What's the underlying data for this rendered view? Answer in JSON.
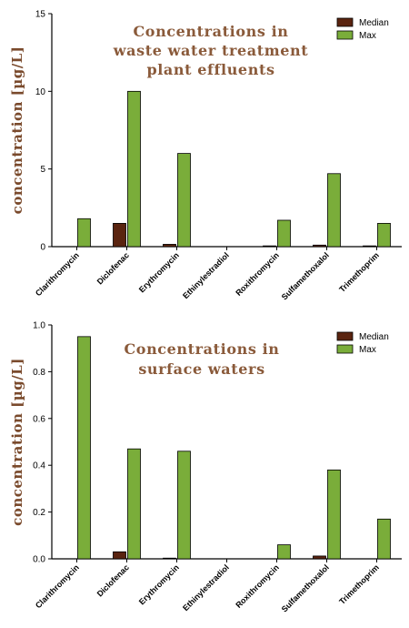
{
  "chart_data": [
    {
      "type": "bar",
      "title_lines": [
        "Concentrations in",
        "waste water treatment",
        "plant effluents"
      ],
      "ylabel": "concentration [µg/L]",
      "xlabel": "",
      "ylim": [
        0,
        15
      ],
      "yticks": [
        "0",
        "5",
        "10",
        "15"
      ],
      "ytick_values": [
        0,
        5,
        10,
        15
      ],
      "categories": [
        "Clarithromycin",
        "Diclofenac",
        "Erythromycin",
        "Ethinylestradiol",
        "Roxithromycin",
        "Sulfamethoxalol",
        "Trimethoprim"
      ],
      "series": [
        {
          "name": "Median",
          "color": "#5a2410",
          "values": [
            0,
            1.5,
            0.15,
            0,
            0.05,
            0.1,
            0.05
          ]
        },
        {
          "name": "Max",
          "color": "#7aad3a",
          "values": [
            1.8,
            10.0,
            6.0,
            0,
            1.7,
            4.7,
            1.5
          ]
        }
      ],
      "legend": "top-right",
      "grid": false
    },
    {
      "type": "bar",
      "title_lines": [
        "Concentrations in",
        "surface waters"
      ],
      "ylabel": "concentration [µg/L]",
      "xlabel": "",
      "ylim": [
        0,
        1.0
      ],
      "yticks": [
        "0.0",
        "0.2",
        "0.4",
        "0.6",
        "0.8",
        "1.0"
      ],
      "ytick_values": [
        0,
        0.2,
        0.4,
        0.6,
        0.8,
        1.0
      ],
      "categories": [
        "Clarithromycin",
        "Diclofenac",
        "Erythromycin",
        "Ethinylestradiol",
        "Roxithromycin",
        "Sulfamethoxalol",
        "Trimethoprim"
      ],
      "series": [
        {
          "name": "Median",
          "color": "#5a2410",
          "values": [
            0,
            0.03,
            0.003,
            0,
            0,
            0.012,
            0
          ]
        },
        {
          "name": "Max",
          "color": "#7aad3a",
          "values": [
            0.95,
            0.47,
            0.46,
            0,
            0.06,
            0.38,
            0.17
          ]
        }
      ],
      "legend": "top-right",
      "grid": false
    }
  ]
}
